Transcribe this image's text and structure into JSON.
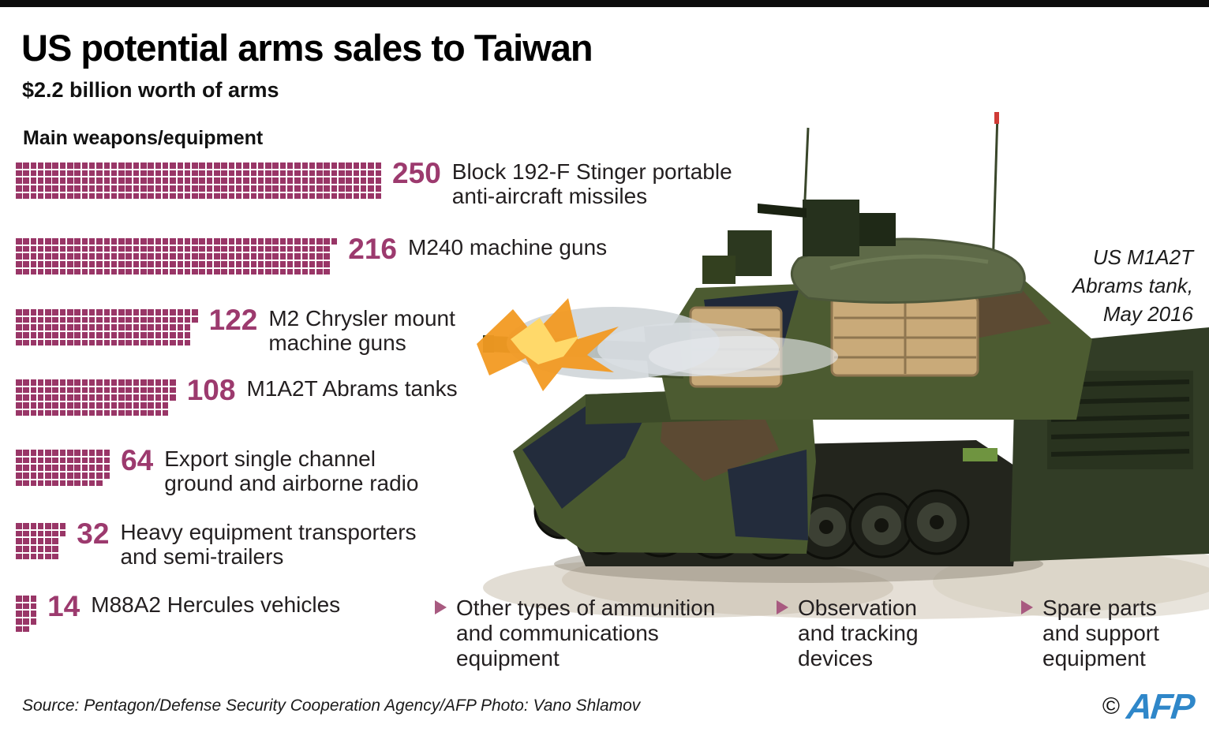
{
  "header": {
    "title": "US potential arms sales to Taiwan",
    "subtitle": "$2.2 billion worth of arms",
    "section_heading": "Main weapons/equipment"
  },
  "chart_data": {
    "type": "bar",
    "representation": "pictogram: 1 small square = 1 unit, stacked in columns of 5, filled top-to-bottom then left-to-right",
    "title": "Main weapons/equipment",
    "categories": [
      "Block 192-F Stinger portable anti-aircraft missiles",
      "M240 machine guns",
      "M2 Chrysler mount machine guns",
      "M1A2T Abrams tanks",
      "Export single channel ground and airborne radio",
      "Heavy equipment transporters and semi-trailers",
      "M88A2 Hercules vehicles"
    ],
    "values": [
      250,
      216,
      122,
      108,
      64,
      32,
      14
    ],
    "xlabel": "",
    "ylabel": "",
    "legend_position": "none",
    "grid": false,
    "unit_color": "#9c3a6e"
  },
  "items": [
    {
      "value": "250",
      "count": 250,
      "label_lines": [
        "Block 192-F Stinger portable",
        "anti-aircraft missiles"
      ]
    },
    {
      "value": "216",
      "count": 216,
      "label_lines": [
        "M240 machine guns"
      ]
    },
    {
      "value": "122",
      "count": 122,
      "label_lines": [
        "M2 Chrysler mount",
        "machine guns"
      ]
    },
    {
      "value": "108",
      "count": 108,
      "label_lines": [
        "M1A2T Abrams tanks"
      ]
    },
    {
      "value": "64",
      "count": 64,
      "label_lines": [
        "Export single channel",
        "ground and airborne radio"
      ]
    },
    {
      "value": "32",
      "count": 32,
      "label_lines": [
        "Heavy equipment transporters",
        "and semi-trailers"
      ]
    },
    {
      "value": "14",
      "count": 14,
      "label_lines": [
        "M88A2 Hercules vehicles"
      ]
    }
  ],
  "photo": {
    "caption_lines": [
      "US M1A2T",
      "Abrams tank,",
      "May 2016"
    ],
    "description": "Camouflaged US M1A2T Abrams tank firing its main gun, muzzle flash at left, dust below"
  },
  "extras": [
    {
      "lines": [
        "Other types of ammunition",
        "and communications",
        "equipment"
      ]
    },
    {
      "lines": [
        "Observation",
        "and tracking",
        "devices"
      ]
    },
    {
      "lines": [
        "Spare parts",
        "and support",
        "equipment"
      ]
    }
  ],
  "footer": {
    "source": "Source: Pentagon/Defense Security Cooperation Agency/AFP Photo: Vano Shlamov",
    "copyright_symbol": "©",
    "agency_logo": "AFP"
  },
  "colors": {
    "accent_plum": "#9c3a6e",
    "square": "#993667",
    "bullet": "#a85a80",
    "afp_blue": "#2f87c9",
    "top_bar": "#0d0d0d"
  }
}
